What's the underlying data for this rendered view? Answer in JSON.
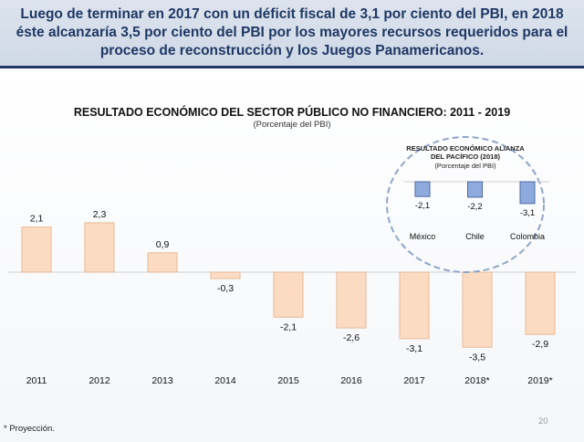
{
  "header": {
    "title": "Luego de terminar en 2017 con un déficit fiscal de 3,1 por ciento del PBI, en 2018 éste alcanzaría 3,5 por ciento del PBI por los mayores recursos requeridos para el proceso de reconstrucción y los Juegos Panamericanos."
  },
  "colors": {
    "header_bg": "#d6dde8",
    "header_text": "#1f3864",
    "main_bar": "#fbdcc3",
    "main_bar_edge": "#e8b995",
    "inset_bar": "#8faadc",
    "inset_bar_edge": "#4a6aa5",
    "inset_circle": "#8fa6c8"
  },
  "chart_data": [
    {
      "type": "bar",
      "title": "RESULTADO ECONÓMICO DEL SECTOR PÚBLICO NO FINANCIERO:  2011 - 2019",
      "subtitle": "(Porcentaje del PBI)",
      "categories": [
        "2011",
        "2012",
        "2013",
        "2014",
        "2015",
        "2016",
        "2017",
        "2018*",
        "2019*"
      ],
      "values": [
        2.1,
        2.3,
        0.9,
        -0.3,
        -2.1,
        -2.6,
        -3.1,
        -3.5,
        -2.9
      ],
      "value_labels": [
        "2,1",
        "2,3",
        "0,9",
        "-0,3",
        "-2,1",
        "-2,6",
        "-3,1",
        "-3,5",
        "-2,9"
      ],
      "xlabel": "",
      "ylabel": "",
      "grid": false
    },
    {
      "type": "bar",
      "title": "RESULTADO ECONÓMICO ALIANZA DEL PACÍFICO (2018)",
      "subtitle": "(Porcentaje del PBI)",
      "categories": [
        "México",
        "Chile",
        "Colombia"
      ],
      "values": [
        -2.1,
        -2.2,
        -3.1
      ],
      "value_labels": [
        "-2,1",
        "-2,2",
        "-3,1"
      ],
      "grid": false
    }
  ],
  "footnote": "* Proyección.",
  "page_number": "20"
}
